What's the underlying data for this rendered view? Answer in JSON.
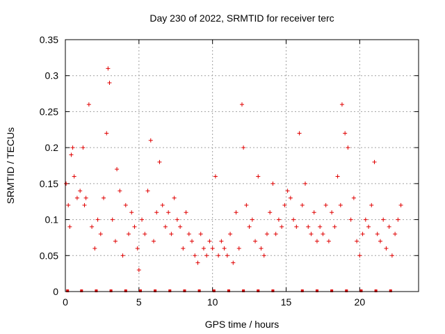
{
  "chart_data": {
    "type": "scatter",
    "title": "Day 230 of 2022, SRMTID for receiver terc",
    "xlabel": "GPS time / hours",
    "ylabel": "SRMTID / TECUs",
    "xlim": [
      0,
      24
    ],
    "ylim": [
      0,
      0.35
    ],
    "xticks": [
      0,
      5,
      10,
      15,
      20
    ],
    "yticks": [
      0,
      0.05,
      0.1,
      0.15,
      0.2,
      0.25,
      0.3,
      0.35
    ],
    "ytick_labels": [
      "0",
      "0.05",
      "0.1",
      "0.15",
      "0.2",
      "0.25",
      "0.3",
      "0.35"
    ],
    "grid": true,
    "marker": "+",
    "color": "#e00000",
    "series": [
      {
        "name": "SRMTID",
        "x": [
          0.05,
          0.2,
          0.3,
          0.4,
          0.5,
          0.6,
          0.8,
          1.0,
          1.2,
          1.3,
          1.4,
          1.6,
          1.8,
          2.0,
          2.2,
          2.4,
          2.6,
          2.8,
          2.9,
          3.0,
          3.2,
          3.4,
          3.5,
          3.7,
          3.9,
          4.1,
          4.3,
          4.5,
          4.7,
          4.9,
          5.0,
          5.2,
          5.4,
          5.6,
          5.8,
          6.0,
          6.2,
          6.4,
          6.6,
          6.8,
          7.0,
          7.2,
          7.4,
          7.6,
          7.8,
          8.0,
          8.2,
          8.4,
          8.6,
          8.8,
          9.0,
          9.2,
          9.4,
          9.6,
          9.8,
          10.0,
          10.2,
          10.4,
          10.6,
          10.8,
          11.0,
          11.2,
          11.4,
          11.6,
          11.8,
          12.0,
          12.1,
          12.3,
          12.5,
          12.7,
          12.9,
          13.1,
          13.3,
          13.5,
          13.7,
          13.9,
          14.1,
          14.3,
          14.5,
          14.7,
          14.9,
          15.1,
          15.3,
          15.5,
          15.7,
          15.9,
          16.1,
          16.3,
          16.5,
          16.7,
          16.9,
          17.1,
          17.3,
          17.5,
          17.7,
          17.9,
          18.1,
          18.3,
          18.5,
          18.7,
          18.8,
          19.0,
          19.2,
          19.4,
          19.6,
          19.8,
          20.0,
          20.2,
          20.4,
          20.6,
          20.8,
          21.0,
          21.2,
          21.4,
          21.6,
          21.8,
          22.0,
          22.2,
          22.4,
          22.6,
          22.8
        ],
        "y": [
          0.15,
          0.12,
          0.09,
          0.19,
          0.2,
          0.16,
          0.13,
          0.14,
          0.2,
          0.12,
          0.13,
          0.26,
          0.09,
          0.06,
          0.1,
          0.08,
          0.13,
          0.22,
          0.31,
          0.29,
          0.1,
          0.07,
          0.17,
          0.14,
          0.05,
          0.12,
          0.08,
          0.11,
          0.09,
          0.06,
          0.03,
          0.1,
          0.08,
          0.14,
          0.21,
          0.07,
          0.11,
          0.18,
          0.12,
          0.09,
          0.11,
          0.08,
          0.13,
          0.1,
          0.09,
          0.06,
          0.11,
          0.08,
          0.07,
          0.05,
          0.04,
          0.08,
          0.06,
          0.05,
          0.07,
          0.06,
          0.16,
          0.05,
          0.07,
          0.06,
          0.05,
          0.08,
          0.04,
          0.11,
          0.06,
          0.26,
          0.2,
          0.12,
          0.09,
          0.1,
          0.07,
          0.16,
          0.06,
          0.05,
          0.08,
          0.11,
          0.15,
          0.08,
          0.1,
          0.09,
          0.12,
          0.14,
          0.13,
          0.1,
          0.09,
          0.22,
          0.12,
          0.15,
          0.09,
          0.08,
          0.11,
          0.07,
          0.09,
          0.08,
          0.12,
          0.07,
          0.11,
          0.09,
          0.16,
          0.12,
          0.26,
          0.22,
          0.2,
          0.1,
          0.13,
          0.07,
          0.05,
          0.08,
          0.1,
          0.09,
          0.12,
          0.18,
          0.08,
          0.07,
          0.1,
          0.06,
          0.09,
          0.05,
          0.08,
          0.1,
          0.12
        ]
      }
    ],
    "gap_markers_x": [
      0.15,
      1.1,
      2.1,
      3.1,
      4.1,
      5.1,
      6.1,
      7.1,
      8.1,
      9.1,
      10.1,
      11.1,
      12.1,
      13.1,
      14.1,
      16.1,
      17.1,
      18.1,
      19.1,
      20.1,
      21.1,
      22.1
    ]
  }
}
